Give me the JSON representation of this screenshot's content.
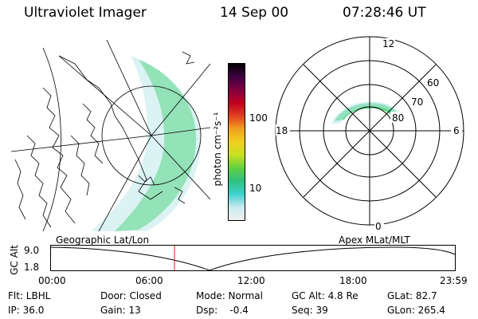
{
  "header": {
    "instrument": "Ultraviolet Imager",
    "date": "14 Sep 00",
    "time": "07:28:46 UT"
  },
  "colorbar": {
    "unit_label": "photon cm⁻²s⁻¹",
    "ticks": [
      "100",
      "10"
    ],
    "colors": [
      "#f0f0f0",
      "#c8e8f0",
      "#40d0d0",
      "#30c080",
      "#60d040",
      "#c8e020",
      "#f0d020",
      "#f0a020",
      "#e04020",
      "#c00020",
      "#800040",
      "#400040",
      "#000000"
    ]
  },
  "polar_plot": {
    "clock_labels": {
      "top": "12",
      "left": "18",
      "right": "6",
      "bottom": "0"
    },
    "lat_labels": [
      "60",
      "70",
      "80"
    ]
  },
  "timeline": {
    "left_title": "Geographic Lat/Lon",
    "right_title": "Apex MLat/MLT",
    "y_axis_label": "GC Alt",
    "y_ticks": [
      "9.0",
      "1.8"
    ],
    "x_ticks": [
      "00:00",
      "06:00",
      "12:00",
      "18:00",
      "23:59"
    ],
    "marker_color": "#d02020"
  },
  "info": {
    "filter": "Flt: LBHL",
    "door": "Door: Closed",
    "mode": "Mode: Normal",
    "gc_alt": "GC Alt: 4.8 Re",
    "glat": "GLat:  82.7",
    "ip": "IP: 36.0",
    "gain": "Gain: 13",
    "dsp": "Dsp:    -0.4",
    "seq": "Seq: 39",
    "glon": "GLon: 265.4"
  }
}
